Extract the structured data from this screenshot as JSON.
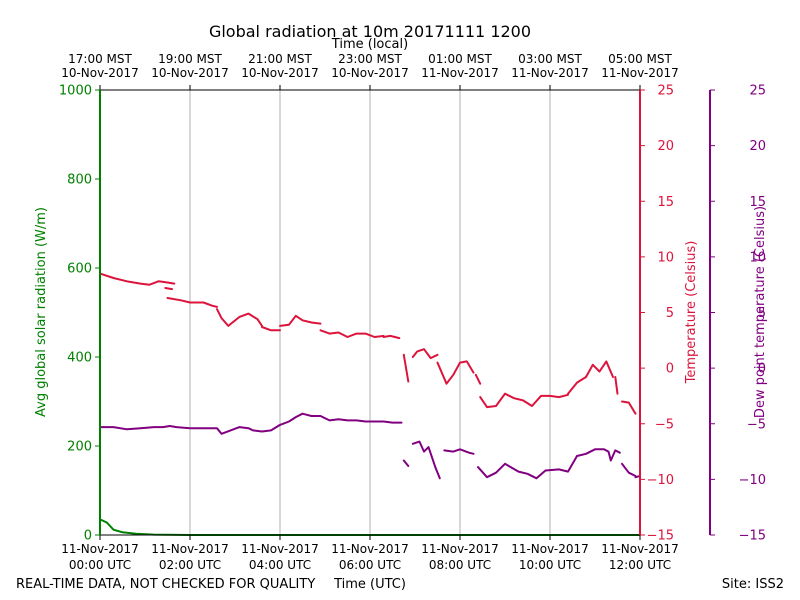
{
  "colors": {
    "radiation": "#008000",
    "temperature": "#dc143c",
    "dewpoint": "#800080",
    "grid": "#b0b0b0",
    "text": "#000000"
  },
  "footer": {
    "disclaimer": "REAL-TIME DATA, NOT CHECKED FOR QUALITY",
    "site": "Site: ISS2"
  },
  "chart_data": {
    "type": "line",
    "title": "Global radiation at 10m 20171111 1200",
    "top_axis_label": "Time (local)",
    "xlabel": "Time (UTC)",
    "xlim": [
      0,
      12
    ],
    "x_ticks_utc": [
      {
        "x": 0,
        "date": "11-Nov-2017",
        "time": "00:00 UTC"
      },
      {
        "x": 2,
        "date": "11-Nov-2017",
        "time": "02:00 UTC"
      },
      {
        "x": 4,
        "date": "11-Nov-2017",
        "time": "04:00 UTC"
      },
      {
        "x": 6,
        "date": "11-Nov-2017",
        "time": "06:00 UTC"
      },
      {
        "x": 8,
        "date": "11-Nov-2017",
        "time": "08:00 UTC"
      },
      {
        "x": 10,
        "date": "11-Nov-2017",
        "time": "10:00 UTC"
      },
      {
        "x": 12,
        "date": "11-Nov-2017",
        "time": "12:00 UTC"
      }
    ],
    "x_ticks_local": [
      {
        "x": 0,
        "time": "17:00 MST",
        "date": "10-Nov-2017"
      },
      {
        "x": 2,
        "time": "19:00 MST",
        "date": "10-Nov-2017"
      },
      {
        "x": 4,
        "time": "21:00 MST",
        "date": "10-Nov-2017"
      },
      {
        "x": 6,
        "time": "23:00 MST",
        "date": "10-Nov-2017"
      },
      {
        "x": 8,
        "time": "01:00 MST",
        "date": "11-Nov-2017"
      },
      {
        "x": 10,
        "time": "03:00 MST",
        "date": "11-Nov-2017"
      },
      {
        "x": 12,
        "time": "05:00 MST",
        "date": "11-Nov-2017"
      }
    ],
    "grid_x": [
      2,
      4,
      6,
      8,
      10
    ],
    "axes": {
      "radiation": {
        "label": "Avg global solar radiation (W/m)",
        "ylim": [
          0,
          1000
        ],
        "ticks": [
          0,
          200,
          400,
          600,
          800,
          1000
        ]
      },
      "temperature": {
        "label": "Temperature (Celsius)",
        "ylim": [
          -15,
          25
        ],
        "ticks": [
          -15,
          -10,
          -5,
          0,
          5,
          10,
          15,
          20,
          25
        ]
      },
      "dewpoint": {
        "label": "Dew point temperature (Celsius)",
        "ylim": [
          -15,
          25
        ],
        "ticks": [
          -15,
          -10,
          -5,
          0,
          5,
          10,
          15,
          20,
          25
        ]
      }
    },
    "series": [
      {
        "name": "Avg global solar radiation",
        "axis": "radiation",
        "segments": [
          [
            [
              0,
              35
            ],
            [
              0.15,
              28
            ],
            [
              0.3,
              12
            ],
            [
              0.5,
              6
            ],
            [
              0.8,
              3
            ],
            [
              1.2,
              1
            ],
            [
              2,
              0
            ],
            [
              4,
              0
            ],
            [
              6,
              0
            ],
            [
              8,
              0
            ],
            [
              10,
              0
            ],
            [
              12,
              0
            ]
          ]
        ]
      },
      {
        "name": "Temperature",
        "axis": "temperature",
        "segments": [
          [
            [
              0,
              8.5
            ],
            [
              0.3,
              8.1
            ],
            [
              0.6,
              7.8
            ],
            [
              0.9,
              7.6
            ],
            [
              1.1,
              7.5
            ],
            [
              1.3,
              7.8
            ],
            [
              1.5,
              7.7
            ],
            [
              1.65,
              7.6
            ]
          ],
          [
            [
              1.45,
              7.2
            ],
            [
              1.6,
              7.1
            ]
          ],
          [
            [
              1.5,
              6.3
            ],
            [
              1.8,
              6.1
            ],
            [
              2.0,
              5.9
            ]
          ],
          [
            [
              2.0,
              5.9
            ],
            [
              2.3,
              5.9
            ],
            [
              2.5,
              5.6
            ],
            [
              2.6,
              5.5
            ]
          ],
          [
            [
              2.6,
              5.3
            ],
            [
              2.7,
              4.5
            ],
            [
              2.85,
              3.8
            ],
            [
              3.1,
              4.6
            ],
            [
              3.3,
              4.9
            ],
            [
              3.5,
              4.4
            ],
            [
              3.6,
              3.8
            ]
          ],
          [
            [
              3.6,
              3.7
            ],
            [
              3.8,
              3.4
            ],
            [
              4.0,
              3.4
            ]
          ],
          [
            [
              4.0,
              3.8
            ],
            [
              4.2,
              3.9
            ],
            [
              4.35,
              4.7
            ],
            [
              4.5,
              4.3
            ],
            [
              4.7,
              4.1
            ],
            [
              4.9,
              4.0
            ]
          ],
          [
            [
              4.9,
              3.4
            ],
            [
              5.1,
              3.1
            ],
            [
              5.3,
              3.2
            ],
            [
              5.5,
              2.8
            ],
            [
              5.7,
              3.1
            ],
            [
              5.9,
              3.1
            ],
            [
              6.1,
              2.8
            ],
            [
              6.3,
              2.9
            ]
          ],
          [
            [
              6.3,
              2.8
            ],
            [
              6.45,
              2.9
            ],
            [
              6.55,
              2.8
            ],
            [
              6.65,
              2.7
            ]
          ],
          [
            [
              6.75,
              1.2
            ],
            [
              6.85,
              -1.2
            ]
          ],
          [
            [
              6.95,
              1.0
            ],
            [
              7.05,
              1.5
            ],
            [
              7.2,
              1.7
            ],
            [
              7.35,
              0.9
            ],
            [
              7.5,
              1.2
            ]
          ],
          [
            [
              7.5,
              0.5
            ],
            [
              7.7,
              -1.4
            ],
            [
              7.85,
              -0.6
            ],
            [
              8.0,
              0.5
            ],
            [
              8.15,
              0.6
            ],
            [
              8.3,
              -0.4
            ]
          ],
          [
            [
              8.35,
              -0.6
            ],
            [
              8.45,
              -1.4
            ]
          ],
          [
            [
              8.45,
              -2.6
            ],
            [
              8.6,
              -3.5
            ],
            [
              8.8,
              -3.4
            ],
            [
              9.0,
              -2.3
            ],
            [
              9.2,
              -2.7
            ],
            [
              9.4,
              -2.9
            ],
            [
              9.6,
              -3.4
            ],
            [
              9.8,
              -2.5
            ],
            [
              10.0,
              -2.5
            ],
            [
              10.2,
              -2.6
            ],
            [
              10.4,
              -2.4
            ]
          ],
          [
            [
              10.4,
              -2.3
            ],
            [
              10.6,
              -1.3
            ],
            [
              10.8,
              -0.8
            ],
            [
              10.95,
              0.3
            ],
            [
              11.1,
              -0.3
            ],
            [
              11.25,
              0.6
            ],
            [
              11.4,
              -0.8
            ]
          ],
          [
            [
              11.45,
              -0.8
            ],
            [
              11.5,
              -2.3
            ]
          ],
          [
            [
              11.6,
              -3.0
            ],
            [
              11.75,
              -3.1
            ],
            [
              11.9,
              -4.1
            ]
          ]
        ]
      },
      {
        "name": "Dew point temperature",
        "axis": "dewpoint",
        "segments": [
          [
            [
              0,
              -5.3
            ],
            [
              0.3,
              -5.3
            ],
            [
              0.6,
              -5.5
            ],
            [
              0.9,
              -5.4
            ],
            [
              1.2,
              -5.3
            ],
            [
              1.4,
              -5.3
            ],
            [
              1.55,
              -5.2
            ],
            [
              1.7,
              -5.3
            ],
            [
              2.0,
              -5.4
            ],
            [
              2.3,
              -5.4
            ],
            [
              2.6,
              -5.4
            ],
            [
              2.7,
              -5.9
            ],
            [
              2.9,
              -5.6
            ],
            [
              3.1,
              -5.3
            ],
            [
              3.3,
              -5.4
            ],
            [
              3.4,
              -5.6
            ],
            [
              3.6,
              -5.7
            ],
            [
              3.8,
              -5.6
            ],
            [
              4.0,
              -5.1
            ],
            [
              4.2,
              -4.8
            ],
            [
              4.35,
              -4.4
            ],
            [
              4.5,
              -4.1
            ],
            [
              4.7,
              -4.3
            ],
            [
              4.9,
              -4.3
            ],
            [
              5.1,
              -4.7
            ],
            [
              5.3,
              -4.6
            ],
            [
              5.5,
              -4.7
            ],
            [
              5.7,
              -4.7
            ],
            [
              5.9,
              -4.8
            ],
            [
              6.1,
              -4.8
            ],
            [
              6.3,
              -4.8
            ],
            [
              6.5,
              -4.9
            ],
            [
              6.7,
              -4.9
            ]
          ],
          [
            [
              6.75,
              -8.3
            ],
            [
              6.85,
              -8.8
            ]
          ],
          [
            [
              6.95,
              -6.8
            ],
            [
              7.1,
              -6.6
            ],
            [
              7.2,
              -7.5
            ],
            [
              7.3,
              -7.1
            ],
            [
              7.45,
              -8.9
            ],
            [
              7.55,
              -9.9
            ]
          ],
          [
            [
              7.65,
              -7.4
            ],
            [
              7.85,
              -7.5
            ],
            [
              8.0,
              -7.3
            ],
            [
              8.2,
              -7.6
            ],
            [
              8.3,
              -7.7
            ]
          ],
          [
            [
              8.4,
              -8.9
            ],
            [
              8.6,
              -9.8
            ],
            [
              8.8,
              -9.4
            ],
            [
              9.0,
              -8.6
            ],
            [
              9.3,
              -9.3
            ],
            [
              9.5,
              -9.5
            ],
            [
              9.7,
              -9.9
            ],
            [
              9.9,
              -9.2
            ],
            [
              10.2,
              -9.1
            ],
            [
              10.4,
              -9.3
            ],
            [
              10.6,
              -7.9
            ],
            [
              10.8,
              -7.7
            ],
            [
              11.0,
              -7.3
            ],
            [
              11.2,
              -7.3
            ],
            [
              11.3,
              -7.5
            ],
            [
              11.35,
              -8.3
            ],
            [
              11.45,
              -7.4
            ],
            [
              11.55,
              -7.6
            ]
          ],
          [
            [
              11.6,
              -8.6
            ],
            [
              11.75,
              -9.4
            ],
            [
              11.9,
              -9.7
            ]
          ],
          [
            [
              11.9,
              -9.8
            ],
            [
              12.0,
              -9.7
            ]
          ]
        ]
      }
    ]
  }
}
